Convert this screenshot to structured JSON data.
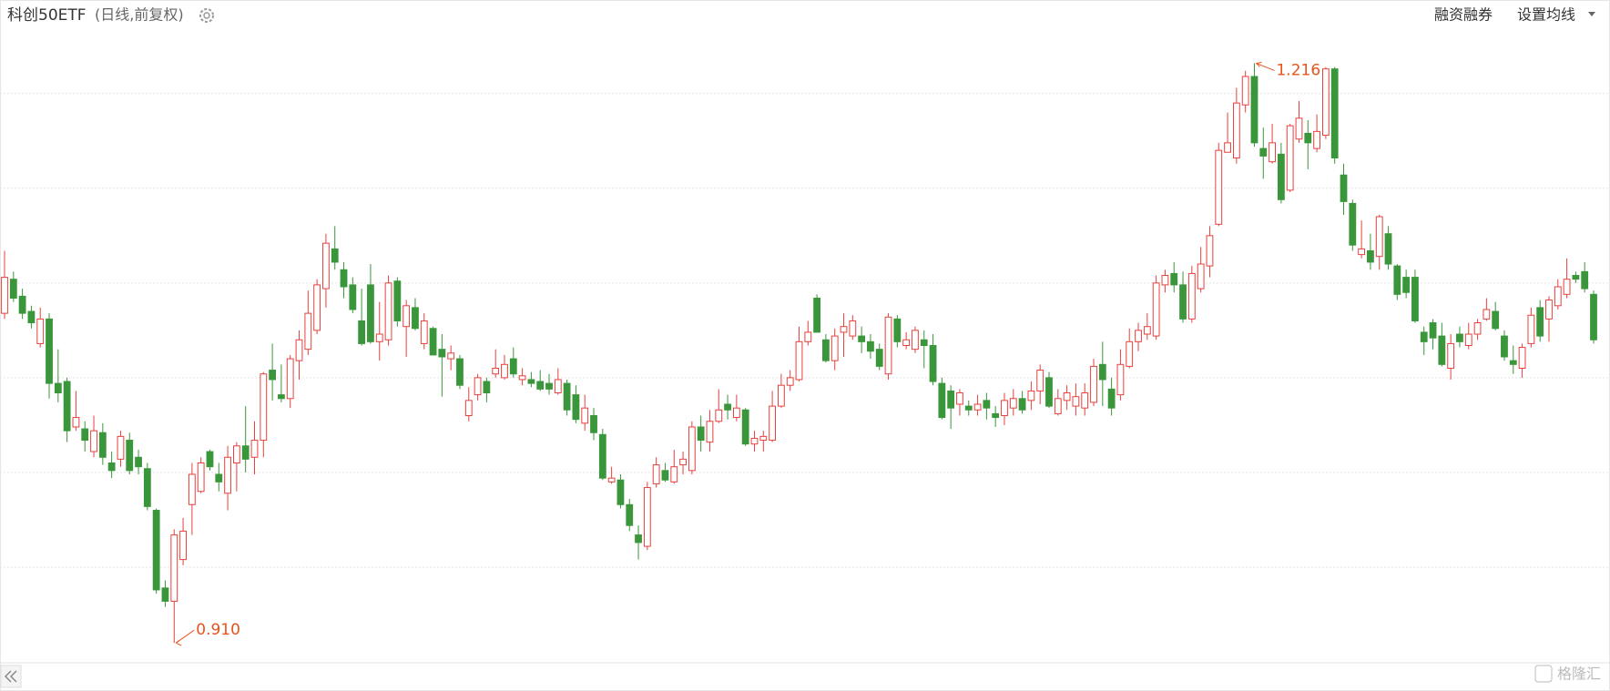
{
  "chart_data": {
    "type": "candlestick",
    "title": "科创50ETF",
    "subtitle": "(日线,前复权)",
    "buttons": [
      "融资融券",
      "设置均线"
    ],
    "watermark": "格隆汇",
    "up_color": "#e8413e",
    "down_color": "#3a963a",
    "annotation_color": "#e8541c",
    "grid": true,
    "ylim": [
      0.9,
      1.234
    ],
    "ygrid": [
      0.95,
      1.0,
      1.05,
      1.1,
      1.15,
      1.2
    ],
    "annotations": [
      {
        "value": 1.216,
        "label": "1.216"
      },
      {
        "value": 0.91,
        "label": "0.910"
      }
    ],
    "candles": [
      [
        1.084,
        1.117,
        1.081,
        1.103
      ],
      [
        1.102,
        1.106,
        1.09,
        1.092
      ],
      [
        1.093,
        1.097,
        1.081,
        1.084
      ],
      [
        1.085,
        1.088,
        1.076,
        1.079
      ],
      [
        1.068,
        1.087,
        1.066,
        1.081
      ],
      [
        1.081,
        1.084,
        1.039,
        1.047
      ],
      [
        1.047,
        1.065,
        1.037,
        1.042
      ],
      [
        1.048,
        1.05,
        1.016,
        1.022
      ],
      [
        1.024,
        1.043,
        1.022,
        1.029
      ],
      [
        1.023,
        1.027,
        1.011,
        1.017
      ],
      [
        1.011,
        1.03,
        1.008,
        1.022
      ],
      [
        1.021,
        1.026,
        1.004,
        1.008
      ],
      [
        1.005,
        1.011,
        0.997,
        1.001
      ],
      [
        1.007,
        1.022,
        1.003,
        1.019
      ],
      [
        1.017,
        1.021,
        0.999,
        1.001
      ],
      [
        1.008,
        1.012,
        0.999,
        1.003
      ],
      [
        1.002,
        1.005,
        0.98,
        0.982
      ],
      [
        0.98,
        0.981,
        0.936,
        0.938
      ],
      [
        0.939,
        0.943,
        0.929,
        0.932
      ],
      [
        0.932,
        0.97,
        0.91,
        0.967
      ],
      [
        0.954,
        0.976,
        0.951,
        0.969
      ],
      [
        0.983,
        1.005,
        0.967,
        0.999
      ],
      [
        0.99,
        1.008,
        0.989,
        1.005
      ],
      [
        1.011,
        1.012,
        1.001,
        1.003
      ],
      [
        0.999,
        1.005,
        0.99,
        0.995
      ],
      [
        0.989,
        1.014,
        0.98,
        1.008
      ],
      [
        1.005,
        1.016,
        0.99,
        1.014
      ],
      [
        1.014,
        1.035,
        1.0,
        1.007
      ],
      [
        1.008,
        1.027,
        0.999,
        1.017
      ],
      [
        1.017,
        1.053,
        1.008,
        1.052
      ],
      [
        1.054,
        1.068,
        1.038,
        1.049
      ],
      [
        1.041,
        1.057,
        1.037,
        1.039
      ],
      [
        1.039,
        1.062,
        1.034,
        1.06
      ],
      [
        1.059,
        1.075,
        1.049,
        1.07
      ],
      [
        1.065,
        1.096,
        1.062,
        1.084
      ],
      [
        1.075,
        1.102,
        1.073,
        1.099
      ],
      [
        1.097,
        1.126,
        1.087,
        1.121
      ],
      [
        1.118,
        1.13,
        1.107,
        1.111
      ],
      [
        1.107,
        1.111,
        1.092,
        1.098
      ],
      [
        1.099,
        1.103,
        1.084,
        1.086
      ],
      [
        1.08,
        1.097,
        1.067,
        1.068
      ],
      [
        1.099,
        1.11,
        1.068,
        1.069
      ],
      [
        1.069,
        1.09,
        1.059,
        1.073
      ],
      [
        1.07,
        1.104,
        1.067,
        1.1
      ],
      [
        1.101,
        1.103,
        1.077,
        1.08
      ],
      [
        1.077,
        1.091,
        1.061,
        1.088
      ],
      [
        1.087,
        1.092,
        1.075,
        1.076
      ],
      [
        1.068,
        1.084,
        1.065,
        1.08
      ],
      [
        1.076,
        1.077,
        1.062,
        1.062
      ],
      [
        1.065,
        1.073,
        1.04,
        1.061
      ],
      [
        1.06,
        1.067,
        1.054,
        1.063
      ],
      [
        1.06,
        1.062,
        1.044,
        1.046
      ],
      [
        1.03,
        1.045,
        1.027,
        1.038
      ],
      [
        1.041,
        1.052,
        1.038,
        1.05
      ],
      [
        1.048,
        1.05,
        1.037,
        1.042
      ],
      [
        1.052,
        1.065,
        1.05,
        1.055
      ],
      [
        1.05,
        1.062,
        1.049,
        1.057
      ],
      [
        1.06,
        1.066,
        1.05,
        1.052
      ],
      [
        1.049,
        1.055,
        1.046,
        1.051
      ],
      [
        1.049,
        1.053,
        1.045,
        1.047
      ],
      [
        1.048,
        1.054,
        1.043,
        1.044
      ],
      [
        1.047,
        1.052,
        1.041,
        1.044
      ],
      [
        1.042,
        1.055,
        1.041,
        1.049
      ],
      [
        1.047,
        1.049,
        1.03,
        1.033
      ],
      [
        1.041,
        1.046,
        1.026,
        1.028
      ],
      [
        1.026,
        1.041,
        1.022,
        1.034
      ],
      [
        1.03,
        1.034,
        1.017,
        1.021
      ],
      [
        1.02,
        1.023,
        0.996,
        0.997
      ],
      [
        0.995,
        1.003,
        0.994,
        0.997
      ],
      [
        0.996,
        0.999,
        0.981,
        0.983
      ],
      [
        0.983,
        0.986,
        0.969,
        0.972
      ],
      [
        0.967,
        0.972,
        0.954,
        0.963
      ],
      [
        0.961,
        0.995,
        0.959,
        0.992
      ],
      [
        0.994,
        1.008,
        0.992,
        1.004
      ],
      [
        1.001,
        1.005,
        0.995,
        0.996
      ],
      [
        0.995,
        1.012,
        0.994,
        1.003
      ],
      [
        1.004,
        1.011,
        0.999,
        1.007
      ],
      [
        1.001,
        1.027,
        0.999,
        1.024
      ],
      [
        1.024,
        1.03,
        1.011,
        1.017
      ],
      [
        1.016,
        1.033,
        1.011,
        1.027
      ],
      [
        1.027,
        1.044,
        1.026,
        1.033
      ],
      [
        1.036,
        1.041,
        1.028,
        1.033
      ],
      [
        1.029,
        1.041,
        1.027,
        1.034
      ],
      [
        1.033,
        1.034,
        1.014,
        1.015
      ],
      [
        1.015,
        1.022,
        1.011,
        1.018
      ],
      [
        1.017,
        1.022,
        1.011,
        1.019
      ],
      [
        1.017,
        1.043,
        1.016,
        1.035
      ],
      [
        1.035,
        1.052,
        1.034,
        1.046
      ],
      [
        1.046,
        1.054,
        1.043,
        1.05
      ],
      [
        1.049,
        1.077,
        1.048,
        1.069
      ],
      [
        1.069,
        1.08,
        1.067,
        1.074
      ],
      [
        1.092,
        1.094,
        1.074,
        1.074
      ],
      [
        1.07,
        1.073,
        1.058,
        1.059
      ],
      [
        1.059,
        1.076,
        1.054,
        1.072
      ],
      [
        1.074,
        1.084,
        1.061,
        1.077
      ],
      [
        1.072,
        1.083,
        1.07,
        1.08
      ],
      [
        1.072,
        1.077,
        1.063,
        1.069
      ],
      [
        1.069,
        1.073,
        1.06,
        1.064
      ],
      [
        1.065,
        1.068,
        1.054,
        1.056
      ],
      [
        1.052,
        1.084,
        1.049,
        1.082
      ],
      [
        1.081,
        1.083,
        1.066,
        1.069
      ],
      [
        1.067,
        1.074,
        1.065,
        1.07
      ],
      [
        1.065,
        1.077,
        1.063,
        1.075
      ],
      [
        1.07,
        1.075,
        1.055,
        1.067
      ],
      [
        1.067,
        1.073,
        1.046,
        1.048
      ],
      [
        1.047,
        1.05,
        1.028,
        1.029
      ],
      [
        1.043,
        1.046,
        1.023,
        1.034
      ],
      [
        1.036,
        1.044,
        1.03,
        1.042
      ],
      [
        1.035,
        1.038,
        1.03,
        1.033
      ],
      [
        1.033,
        1.041,
        1.03,
        1.036
      ],
      [
        1.038,
        1.042,
        1.028,
        1.034
      ],
      [
        1.031,
        1.035,
        1.024,
        1.029
      ],
      [
        1.03,
        1.042,
        1.025,
        1.038
      ],
      [
        1.034,
        1.044,
        1.03,
        1.039
      ],
      [
        1.039,
        1.043,
        1.031,
        1.033
      ],
      [
        1.038,
        1.048,
        1.033,
        1.043
      ],
      [
        1.043,
        1.057,
        1.036,
        1.054
      ],
      [
        1.05,
        1.053,
        1.034,
        1.035
      ],
      [
        1.031,
        1.044,
        1.03,
        1.039
      ],
      [
        1.038,
        1.046,
        1.033,
        1.042
      ],
      [
        1.035,
        1.047,
        1.03,
        1.04
      ],
      [
        1.034,
        1.047,
        1.03,
        1.042
      ],
      [
        1.037,
        1.06,
        1.035,
        1.056
      ],
      [
        1.057,
        1.069,
        1.035,
        1.049
      ],
      [
        1.044,
        1.05,
        1.03,
        1.034
      ],
      [
        1.041,
        1.065,
        1.038,
        1.057
      ],
      [
        1.056,
        1.076,
        1.055,
        1.069
      ],
      [
        1.069,
        1.079,
        1.064,
        1.075
      ],
      [
        1.073,
        1.084,
        1.07,
        1.077
      ],
      [
        1.072,
        1.104,
        1.07,
        1.1
      ],
      [
        1.099,
        1.107,
        1.095,
        1.104
      ],
      [
        1.105,
        1.111,
        1.095,
        1.099
      ],
      [
        1.099,
        1.106,
        1.079,
        1.081
      ],
      [
        1.081,
        1.109,
        1.079,
        1.105
      ],
      [
        1.097,
        1.119,
        1.095,
        1.11
      ],
      [
        1.109,
        1.13,
        1.103,
        1.125
      ],
      [
        1.131,
        1.174,
        1.13,
        1.17
      ],
      [
        1.169,
        1.19,
        1.169,
        1.174
      ],
      [
        1.166,
        1.203,
        1.163,
        1.195
      ],
      [
        1.194,
        1.212,
        1.19,
        1.209
      ],
      [
        1.209,
        1.216,
        1.172,
        1.174
      ],
      [
        1.171,
        1.182,
        1.155,
        1.167
      ],
      [
        1.164,
        1.184,
        1.163,
        1.174
      ],
      [
        1.168,
        1.174,
        1.142,
        1.144
      ],
      [
        1.149,
        1.184,
        1.148,
        1.183
      ],
      [
        1.176,
        1.196,
        1.174,
        1.187
      ],
      [
        1.179,
        1.186,
        1.16,
        1.174
      ],
      [
        1.171,
        1.189,
        1.169,
        1.18
      ],
      [
        1.178,
        1.214,
        1.176,
        1.213
      ],
      [
        1.213,
        1.214,
        1.163,
        1.166
      ],
      [
        1.157,
        1.163,
        1.136,
        1.143
      ],
      [
        1.142,
        1.144,
        1.117,
        1.12
      ],
      [
        1.115,
        1.133,
        1.113,
        1.118
      ],
      [
        1.117,
        1.126,
        1.107,
        1.111
      ],
      [
        1.114,
        1.136,
        1.107,
        1.135
      ],
      [
        1.126,
        1.13,
        1.107,
        1.11
      ],
      [
        1.109,
        1.11,
        1.091,
        1.094
      ],
      [
        1.103,
        1.107,
        1.092,
        1.095
      ],
      [
        1.103,
        1.107,
        1.079,
        1.08
      ],
      [
        1.074,
        1.077,
        1.062,
        1.069
      ],
      [
        1.079,
        1.081,
        1.065,
        1.071
      ],
      [
        1.072,
        1.079,
        1.056,
        1.057
      ],
      [
        1.055,
        1.073,
        1.049,
        1.068
      ],
      [
        1.073,
        1.077,
        1.066,
        1.069
      ],
      [
        1.067,
        1.079,
        1.065,
        1.073
      ],
      [
        1.073,
        1.081,
        1.07,
        1.079
      ],
      [
        1.081,
        1.092,
        1.08,
        1.086
      ],
      [
        1.085,
        1.09,
        1.075,
        1.076
      ],
      [
        1.072,
        1.075,
        1.059,
        1.061
      ],
      [
        1.059,
        1.067,
        1.052,
        1.057
      ],
      [
        1.055,
        1.068,
        1.05,
        1.066
      ],
      [
        1.068,
        1.087,
        1.066,
        1.083
      ],
      [
        1.087,
        1.091,
        1.069,
        1.072
      ],
      [
        1.081,
        1.093,
        1.069,
        1.091
      ],
      [
        1.088,
        1.102,
        1.086,
        1.098
      ],
      [
        1.094,
        1.113,
        1.092,
        1.102
      ],
      [
        1.104,
        1.106,
        1.1,
        1.102
      ],
      [
        1.106,
        1.111,
        1.095,
        1.097
      ],
      [
        1.094,
        1.096,
        1.068,
        1.07
      ]
    ]
  }
}
